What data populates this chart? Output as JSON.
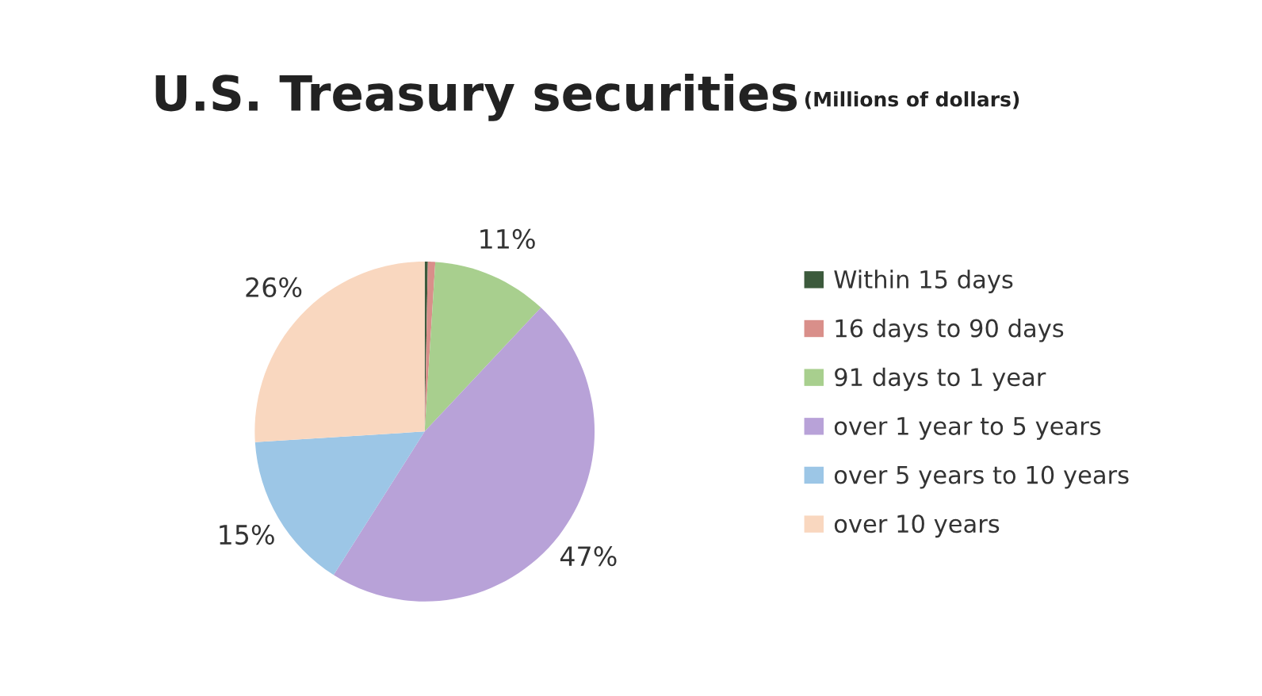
{
  "chart_data": {
    "type": "pie",
    "title": "U.S. Treasury securities",
    "subtitle": "(Millions of dollars)",
    "categories": [
      "Within 15 days",
      "16 days to 90 days",
      "91 days to 1 year",
      "over 1 year to 5 years",
      "over 5 years to 10 years",
      "over 10 years"
    ],
    "values": [
      0.3,
      0.7,
      11,
      47,
      15,
      26
    ],
    "value_labels": [
      null,
      null,
      "11%",
      "47%",
      "15%",
      "26%"
    ],
    "colors": [
      "#3c5a3c",
      "#d98f8a",
      "#a8cf8e",
      "#b8a2d8",
      "#9cc6e6",
      "#f9d7bf"
    ],
    "legend": "right"
  }
}
